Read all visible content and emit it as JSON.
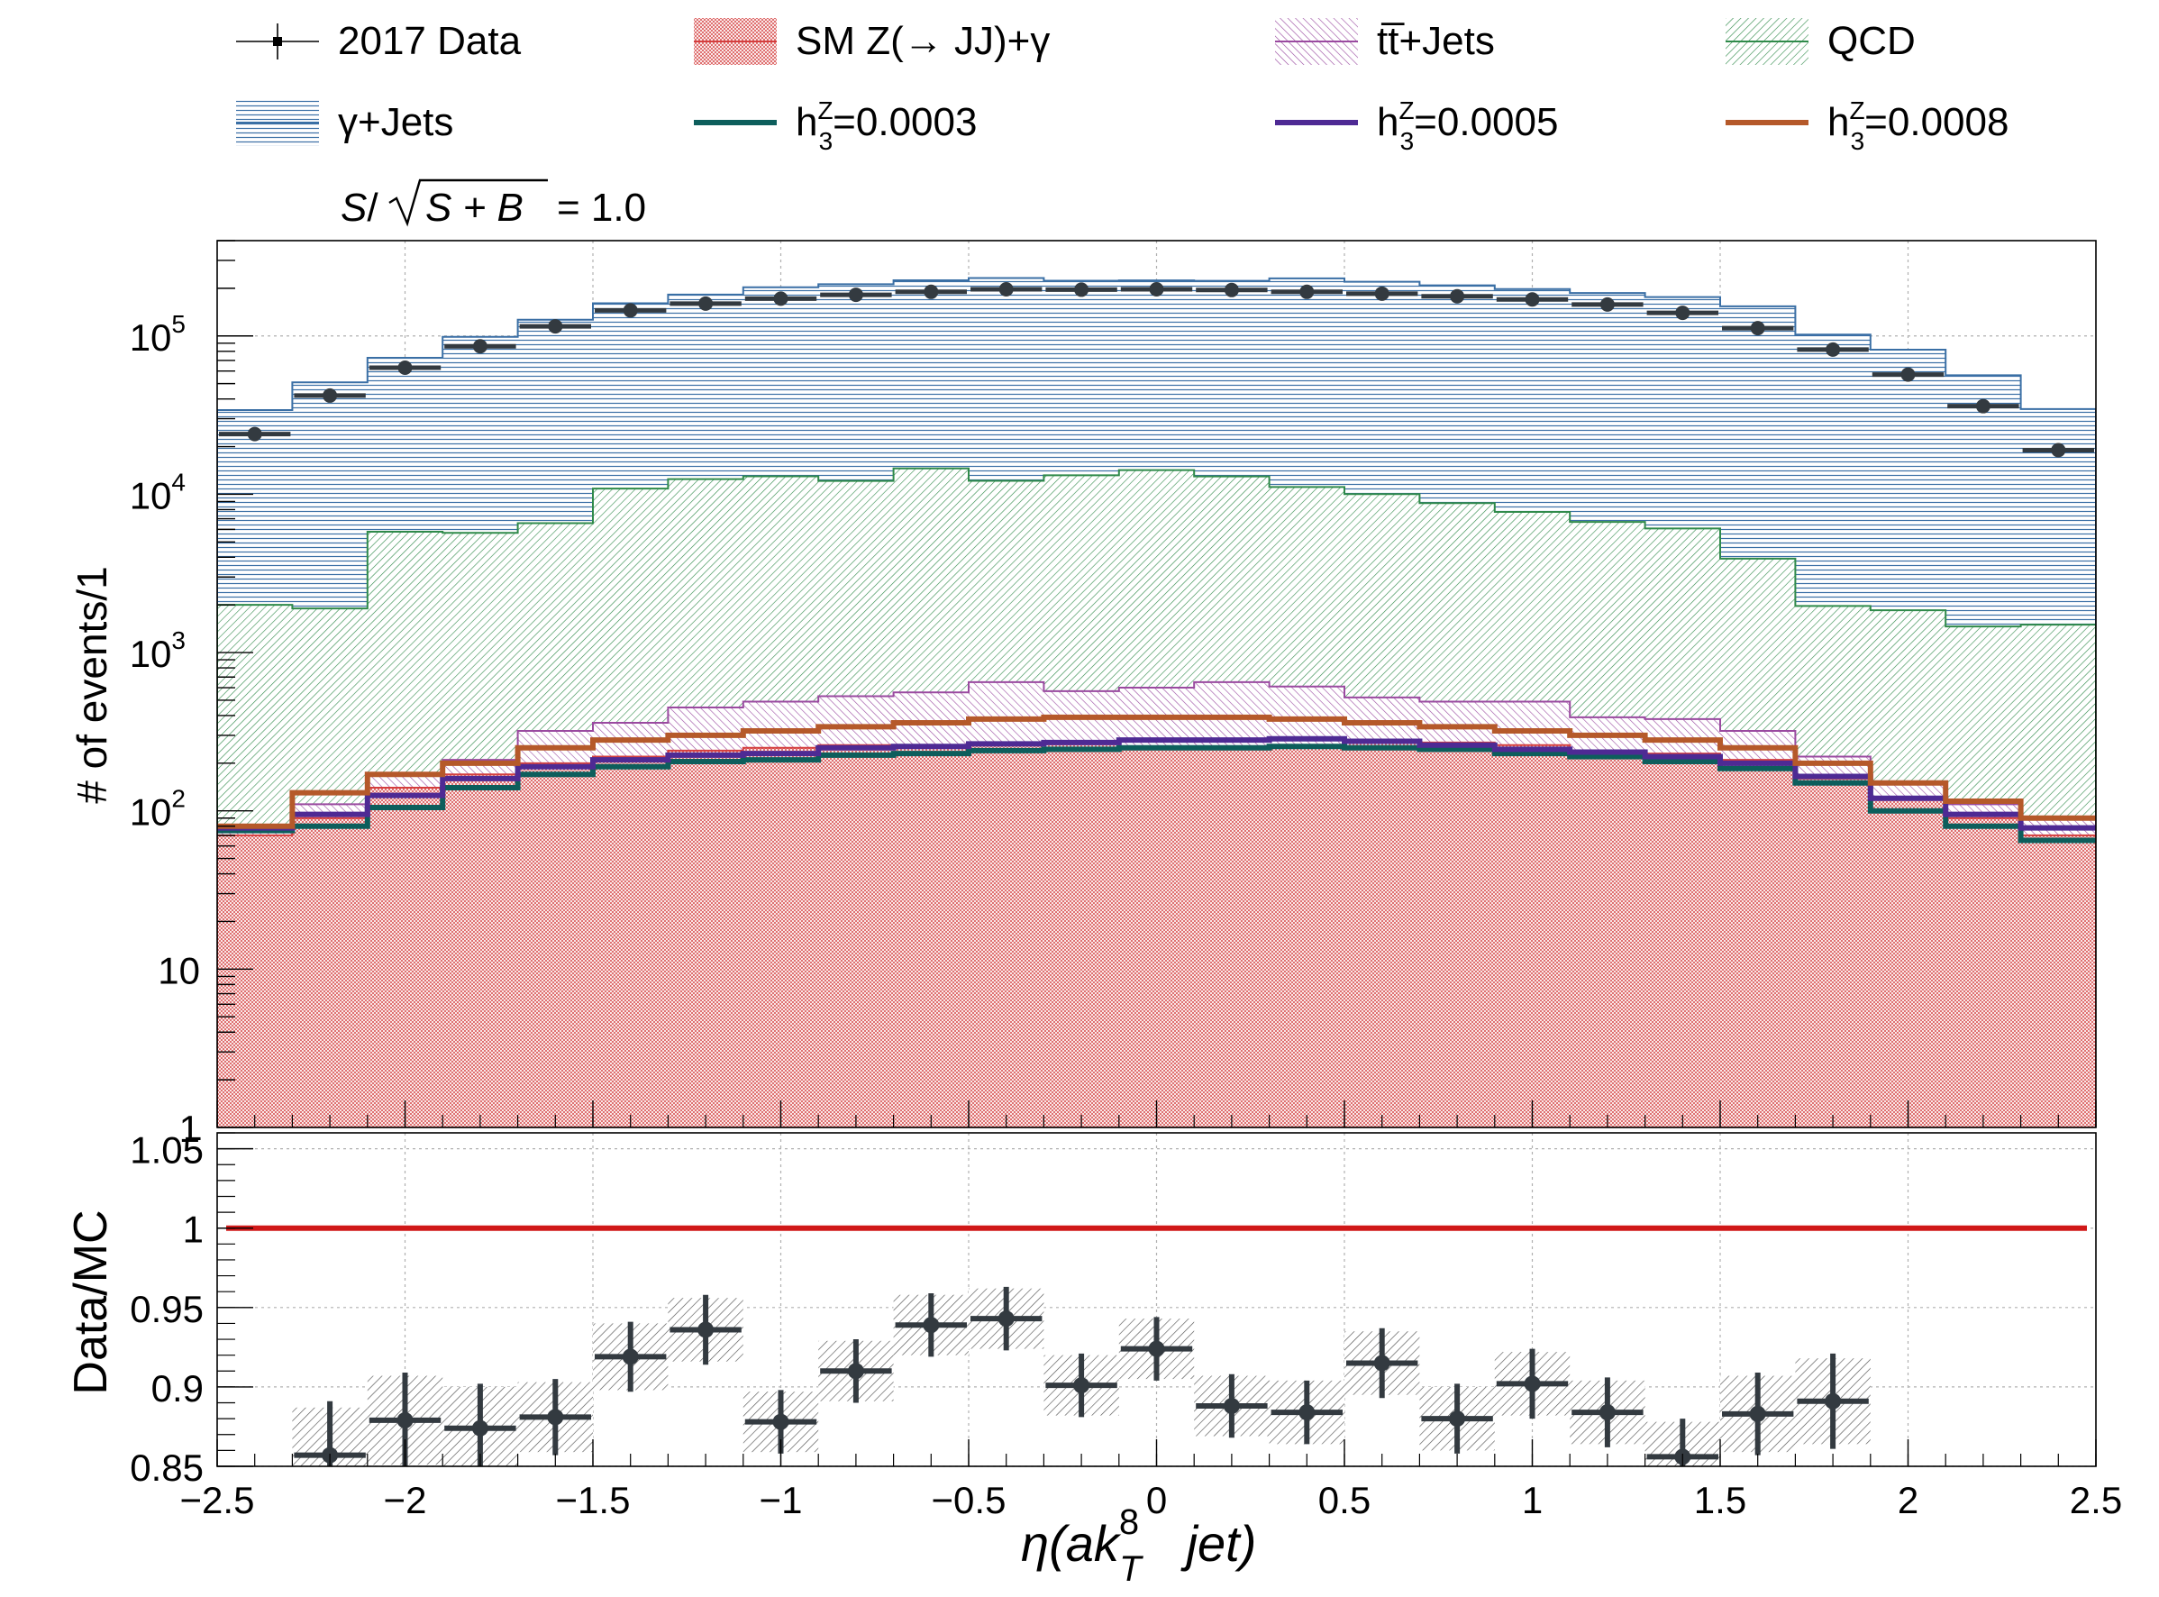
{
  "chart_data": {
    "type": "stacked-histogram-with-ratio",
    "legend": {
      "placement": "top",
      "entries": [
        {
          "id": "data",
          "label": "2017 Data"
        },
        {
          "id": "sm",
          "label": "SM Z(→ JJ)+γ",
          "color": "#d43e3e"
        },
        {
          "id": "tt",
          "label": "tt̅+Jets",
          "color": "#9a4aa0"
        },
        {
          "id": "qcd",
          "label": "QCD",
          "color": "#2f8a4a"
        },
        {
          "id": "gj",
          "label": "γ+Jets",
          "color": "#3a6fa5"
        },
        {
          "id": "h1",
          "label_prefix": "h",
          "label_sup": "Z",
          "label_sub": "3",
          "label_value": "=0.0003",
          "color": "#0d5e5c"
        },
        {
          "id": "h2",
          "label_prefix": "h",
          "label_sup": "Z",
          "label_sub": "3",
          "label_value": "=0.0005",
          "color": "#4e2a94"
        },
        {
          "id": "h3",
          "label_prefix": "h",
          "label_sup": "Z",
          "label_sub": "3",
          "label_value": "=0.0008",
          "color": "#b5592a"
        }
      ]
    },
    "significance": {
      "s": "S",
      "slash": "/",
      "sqrt_arg": "S + B",
      "eq": "= 1.0"
    },
    "main": {
      "ylabel": "# of events/1",
      "yscale": "log",
      "ylim": [
        1,
        400000
      ],
      "yticks": [
        {
          "value": 1,
          "base": "1"
        },
        {
          "value": 10,
          "base": "10"
        },
        {
          "value": 100,
          "base": "10",
          "exp": "2"
        },
        {
          "value": 1000,
          "base": "10",
          "exp": "3"
        },
        {
          "value": 10000,
          "base": "10",
          "exp": "4"
        },
        {
          "value": 100000,
          "base": "10",
          "exp": "5"
        }
      ],
      "bin_edges": [
        -2.5,
        -2.3,
        -2.1,
        -1.9,
        -1.7,
        -1.5,
        -1.3,
        -1.1,
        -0.9,
        -0.7,
        -0.5,
        -0.3,
        -0.1,
        0.1,
        0.3,
        0.5,
        0.7,
        0.9,
        1.1,
        1.3,
        1.5,
        1.7,
        1.9,
        2.1,
        2.3,
        2.5
      ],
      "stack": [
        {
          "id": "sm",
          "name": "SM Z(→ JJ)+γ",
          "values": [
            70,
            90,
            140,
            170,
            200,
            220,
            240,
            250,
            260,
            260,
            270,
            270,
            250,
            250,
            260,
            270,
            270,
            260,
            240,
            230,
            210,
            160,
            120,
            90,
            70
          ]
        },
        {
          "id": "tt",
          "name": "tt̅+Jets",
          "values": [
            10,
            20,
            30,
            40,
            120,
            140,
            210,
            240,
            270,
            300,
            380,
            300,
            350,
            400,
            350,
            250,
            220,
            230,
            150,
            150,
            110,
            60,
            30,
            20,
            20
          ]
        },
        {
          "id": "qcd",
          "name": "QCD",
          "values": [
            1920,
            1790,
            5630,
            5490,
            6240,
            10500,
            12000,
            12500,
            11600,
            14000,
            11500,
            12600,
            13600,
            12300,
            10500,
            9500,
            8300,
            7250,
            6300,
            5700,
            3600,
            1750,
            1700,
            1350,
            1410
          ]
        },
        {
          "id": "gj",
          "name": "γ+Jets",
          "values": [
            32000,
            49000,
            67000,
            93000,
            120000,
            150000,
            170000,
            190000,
            200000,
            210000,
            220000,
            210000,
            210000,
            210000,
            220000,
            210000,
            200000,
            190000,
            180000,
            170000,
            150000,
            100000,
            80000,
            55000,
            33000
          ]
        }
      ],
      "signals": [
        {
          "id": "h1",
          "name": "=0.0003",
          "values": [
            75,
            80,
            105,
            140,
            170,
            190,
            205,
            210,
            225,
            230,
            240,
            245,
            250,
            250,
            255,
            250,
            245,
            230,
            220,
            205,
            185,
            150,
            100,
            80,
            65
          ]
        },
        {
          "id": "h2",
          "name": "=0.0005",
          "values": [
            78,
            95,
            125,
            160,
            190,
            210,
            225,
            230,
            250,
            255,
            265,
            270,
            280,
            280,
            285,
            275,
            260,
            245,
            235,
            220,
            200,
            165,
            120,
            95,
            78
          ]
        },
        {
          "id": "h3",
          "name": "=0.0008",
          "values": [
            80,
            130,
            170,
            200,
            250,
            280,
            300,
            320,
            340,
            360,
            380,
            390,
            390,
            390,
            380,
            360,
            340,
            320,
            300,
            280,
            250,
            200,
            150,
            115,
            90
          ]
        }
      ],
      "data": {
        "name": "2017 Data",
        "x": [
          -2.4,
          -2.2,
          -2.0,
          -1.8,
          -1.6,
          -1.4,
          -1.2,
          -1.0,
          -0.8,
          -0.6,
          -0.4,
          -0.2,
          0.0,
          0.2,
          0.4,
          0.6,
          0.8,
          1.0,
          1.2,
          1.4,
          1.6,
          1.8,
          2.0,
          2.2,
          2.4
        ],
        "y": [
          24000,
          42000,
          63000,
          86000,
          115000,
          145000,
          160000,
          172000,
          182000,
          190000,
          197000,
          196000,
          197000,
          195000,
          190000,
          185000,
          178000,
          170000,
          158000,
          140000,
          112000,
          82000,
          57000,
          36000,
          19000
        ]
      }
    },
    "ratio": {
      "ylabel": "Data/MC",
      "ylim": [
        0.85,
        1.06
      ],
      "yticks": [
        "0.85",
        "0.9",
        "0.95",
        "1",
        "1.05"
      ],
      "reference_line": {
        "value": 1,
        "color": "#d01818"
      },
      "x": [
        -2.2,
        -2.0,
        -1.8,
        -1.6,
        -1.4,
        -1.2,
        -1.0,
        -0.8,
        -0.6,
        -0.4,
        -0.2,
        0.0,
        0.2,
        0.4,
        0.6,
        0.8,
        1.0,
        1.2,
        1.4,
        1.6,
        1.8
      ],
      "y": [
        0.857,
        0.879,
        0.874,
        0.881,
        0.919,
        0.936,
        0.878,
        0.91,
        0.939,
        0.943,
        0.901,
        0.924,
        0.888,
        0.884,
        0.915,
        0.88,
        0.902,
        0.884,
        0.856,
        0.883,
        0.891
      ],
      "yerr": [
        0.017,
        0.015,
        0.014,
        0.012,
        0.011,
        0.011,
        0.01,
        0.01,
        0.01,
        0.01,
        0.01,
        0.01,
        0.01,
        0.01,
        0.011,
        0.011,
        0.011,
        0.011,
        0.012,
        0.013,
        0.015
      ],
      "syst": [
        0.03,
        0.028,
        0.026,
        0.022,
        0.021,
        0.02,
        0.019,
        0.019,
        0.019,
        0.019,
        0.019,
        0.019,
        0.019,
        0.02,
        0.02,
        0.02,
        0.02,
        0.02,
        0.022,
        0.024,
        0.027
      ]
    },
    "x_axis": {
      "xlim": [
        -2.5,
        2.5
      ],
      "ticks": [
        "−2.5",
        "−2",
        "−1.5",
        "−1",
        "−0.5",
        "0",
        "0.5",
        "1",
        "1.5",
        "2",
        "2.5"
      ],
      "tick_values": [
        -2.5,
        -2,
        -1.5,
        -1,
        -0.5,
        0,
        0.5,
        1,
        1.5,
        2,
        2.5
      ],
      "label_eta": "η(",
      "label_ak": "ak",
      "label_sup": "8",
      "label_sub": "T",
      "label_rest": "jet)"
    },
    "grid": true
  }
}
